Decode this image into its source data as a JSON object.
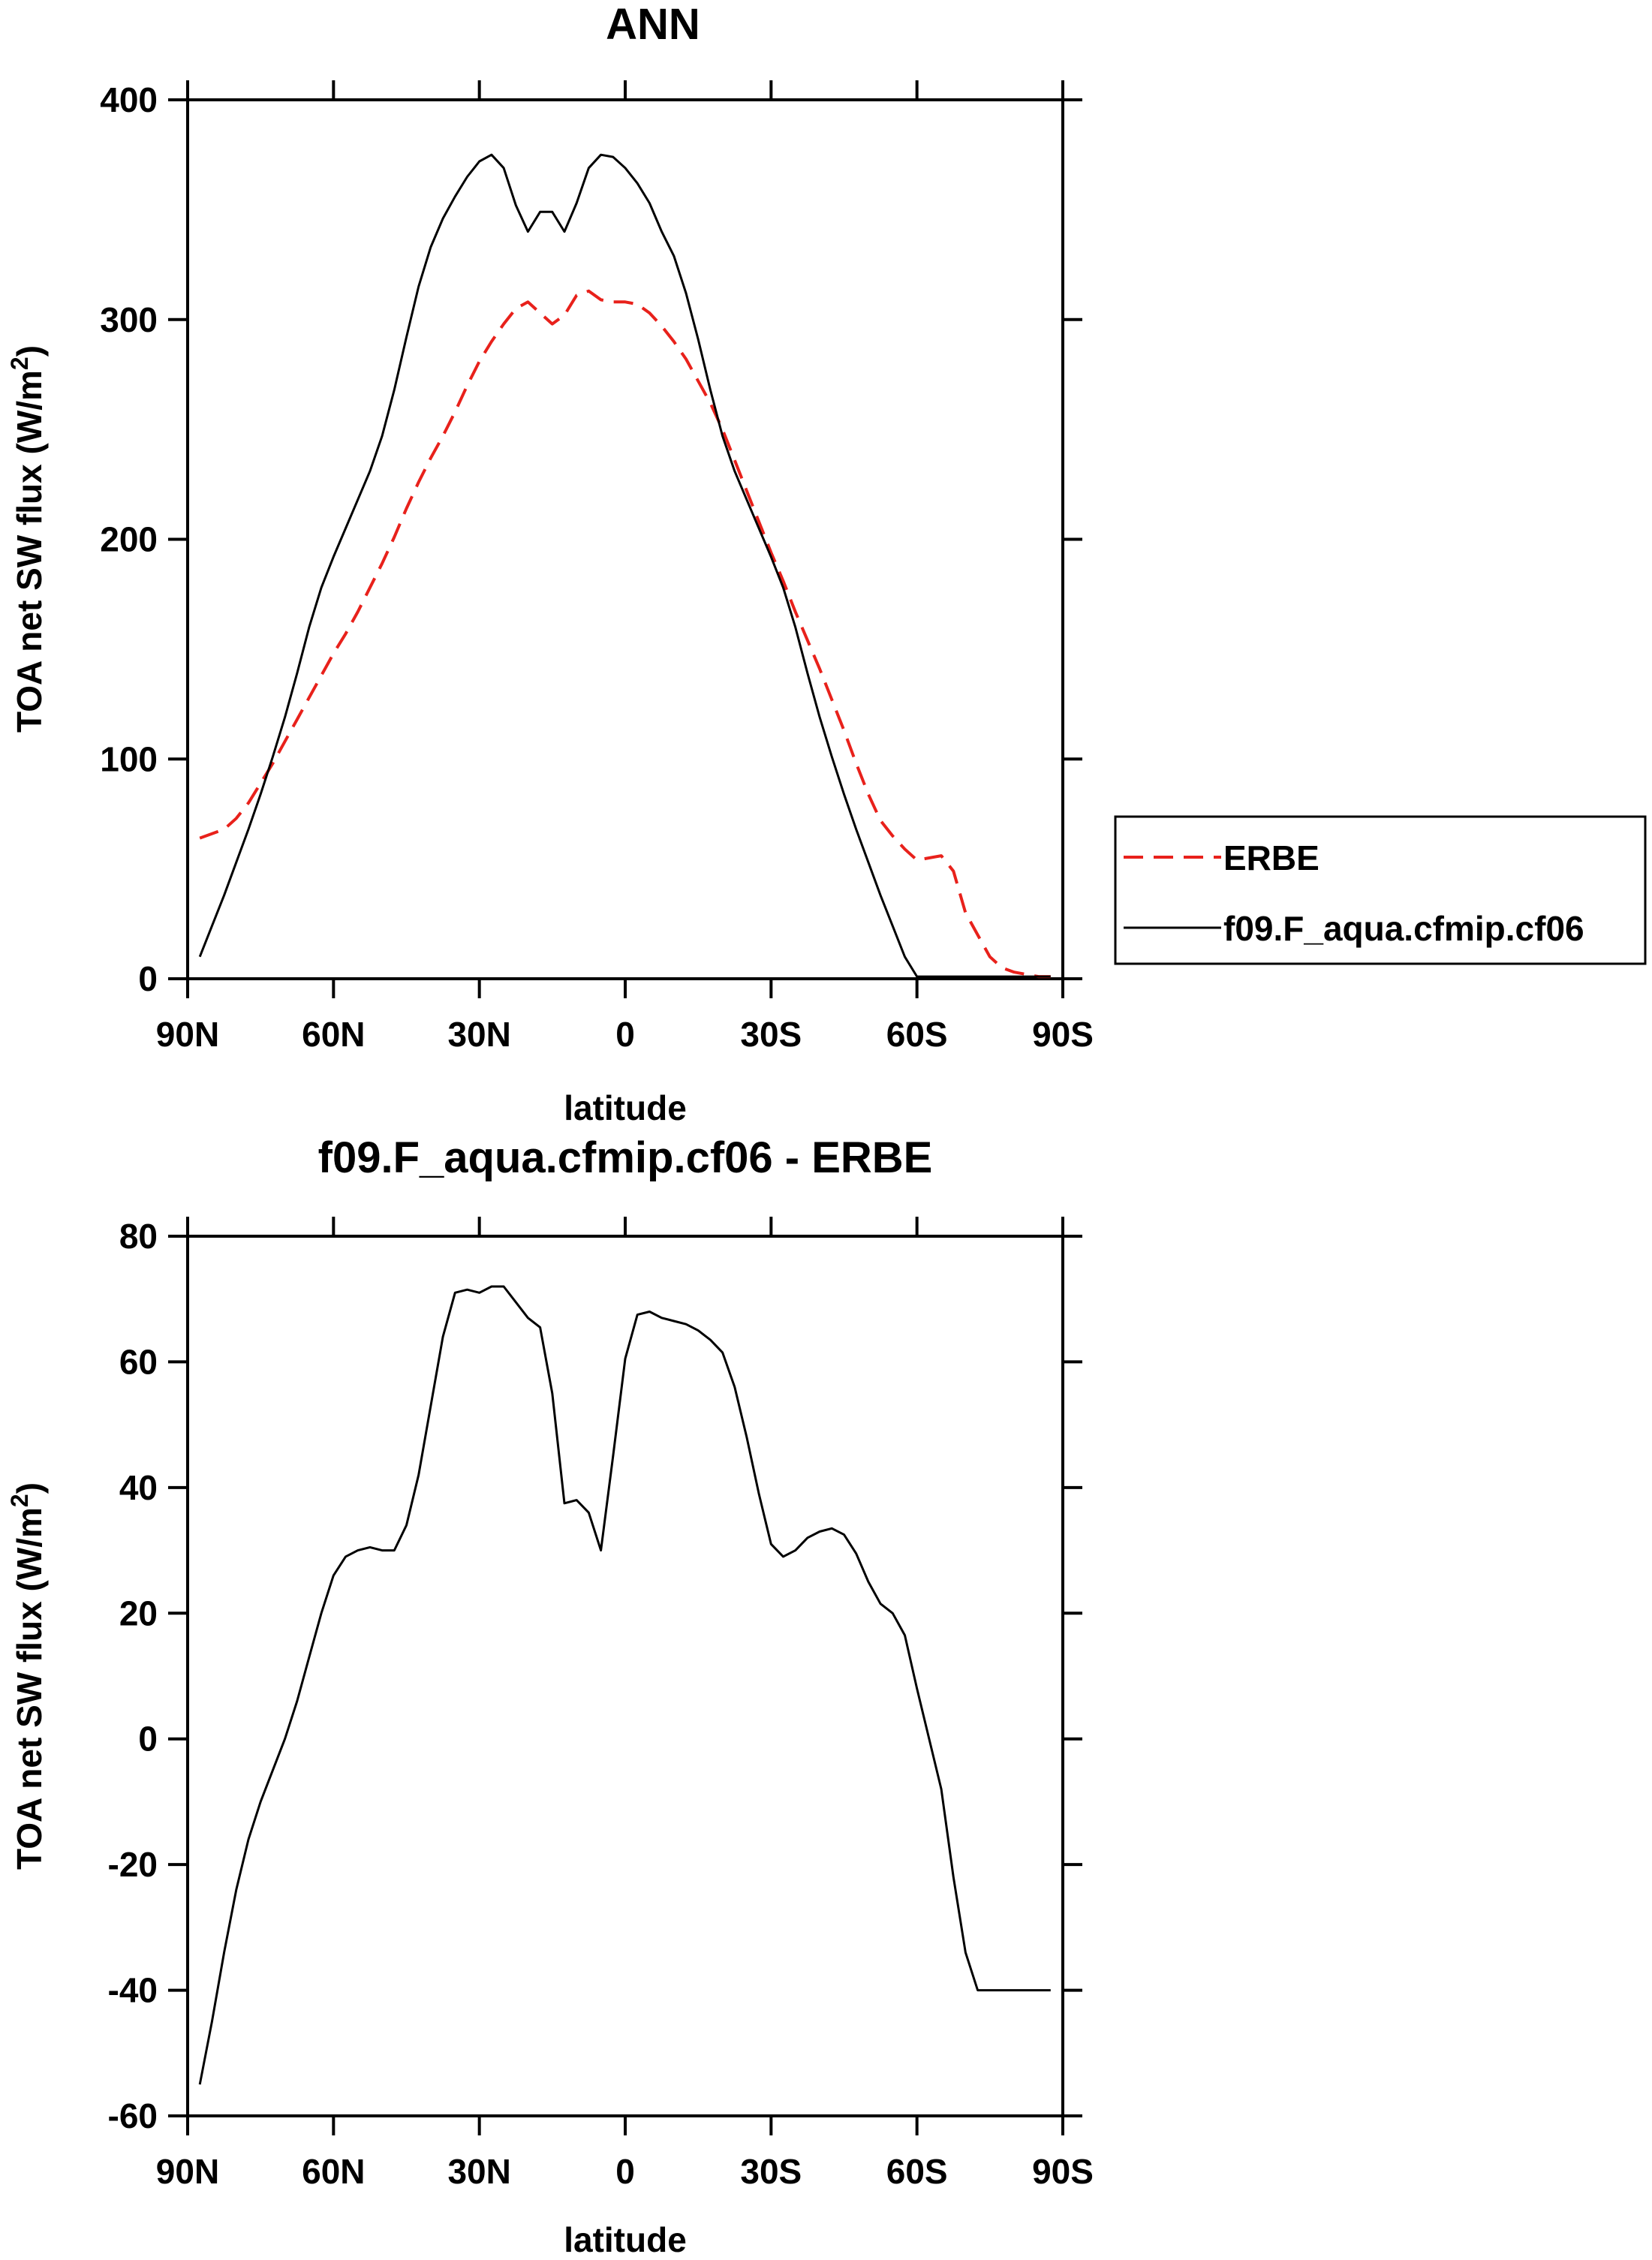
{
  "chart_data": [
    {
      "type": "line",
      "title": "ANN",
      "xlabel": "latitude",
      "ylabel": "TOA net SW flux (W/m",
      "ylabel_sup": "2",
      "ylabel_end": ")",
      "xlim": [
        -90,
        90
      ],
      "ylim": [
        0,
        400
      ],
      "xticks": [
        -90,
        -60,
        -30,
        0,
        30,
        60,
        90
      ],
      "xtick_labels": [
        "90N",
        "60N",
        "30N",
        "0",
        "30S",
        "60S",
        "90S"
      ],
      "yticks": [
        0,
        100,
        200,
        300,
        400
      ],
      "ytick_labels": [
        "0",
        "100",
        "200",
        "300",
        "400"
      ],
      "legend_position": "right",
      "series": [
        {
          "name": "ERBE",
          "color": "#e8211b",
          "dash": "dashed",
          "x": [
            -87.5,
            -85,
            -82.5,
            -80,
            -77.5,
            -75,
            -72.5,
            -70,
            -67.5,
            -65,
            -62.5,
            -60,
            -57.5,
            -55,
            -52.5,
            -50,
            -47.5,
            -45,
            -42.5,
            -40,
            -37.5,
            -35,
            -32.5,
            -30,
            -27.5,
            -25,
            -22.5,
            -20,
            -17.5,
            -15,
            -12.5,
            -10,
            -7.5,
            -5,
            -2.5,
            0,
            2.5,
            5,
            7.5,
            10,
            12.5,
            15,
            17.5,
            20,
            22.5,
            25,
            27.5,
            30,
            32.5,
            35,
            37.5,
            40,
            42.5,
            45,
            47.5,
            50,
            52.5,
            55,
            57.5,
            60,
            62.5,
            65,
            67.5,
            70,
            72.5,
            75,
            77.5,
            80,
            82.5,
            85,
            87.5
          ],
          "y": [
            64,
            66,
            68,
            73,
            80,
            89,
            98,
            108,
            118,
            128,
            138,
            148,
            157,
            167,
            178,
            189,
            201,
            214,
            226,
            237,
            247,
            258,
            270,
            281,
            290,
            298,
            305,
            308,
            303,
            298,
            302,
            311,
            313,
            309,
            308,
            308,
            307,
            303,
            297,
            290,
            282,
            272,
            262,
            250,
            236,
            222,
            208,
            194,
            181,
            167,
            154,
            141,
            127,
            113,
            98,
            84,
            72,
            65,
            59,
            54,
            55,
            56,
            49,
            30,
            20,
            10,
            5,
            3,
            2,
            1,
            1
          ]
        },
        {
          "name": "f09.F_aqua.cfmip.cf06",
          "color": "#000000",
          "dash": "solid",
          "x": [
            -87.5,
            -85,
            -82.5,
            -80,
            -77.5,
            -75,
            -72.5,
            -70,
            -67.5,
            -65,
            -62.5,
            -60,
            -57.5,
            -55,
            -52.5,
            -50,
            -47.5,
            -45,
            -42.5,
            -40,
            -37.5,
            -35,
            -32.5,
            -30,
            -27.5,
            -25,
            -22.5,
            -20,
            -17.5,
            -15,
            -12.5,
            -10,
            -7.5,
            -5,
            -2.5,
            0,
            2.5,
            5,
            7.5,
            10,
            12.5,
            15,
            17.5,
            20,
            22.5,
            25,
            27.5,
            30,
            32.5,
            35,
            37.5,
            40,
            42.5,
            45,
            47.5,
            50,
            52.5,
            55,
            57.5,
            60,
            62.5,
            65,
            67.5,
            70,
            72.5,
            75,
            77.5,
            80,
            82.5,
            85,
            87.5
          ],
          "y": [
            10,
            24,
            38,
            53,
            68,
            84,
            101,
            119,
            139,
            160,
            178,
            192,
            205,
            218,
            231,
            247,
            268,
            292,
            315,
            333,
            346,
            356,
            365,
            372,
            375,
            369,
            352,
            340,
            349,
            349,
            340,
            353,
            369,
            375,
            374,
            369,
            362,
            353,
            340,
            329,
            312,
            291,
            268,
            247,
            231,
            218,
            205,
            192,
            178,
            160,
            139,
            119,
            101,
            84,
            68,
            53,
            38,
            24,
            10,
            1,
            1,
            1,
            1,
            1,
            1,
            1,
            1,
            1,
            1,
            1,
            1
          ]
        }
      ]
    },
    {
      "type": "line",
      "title": "f09.F_aqua.cfmip.cf06 - ERBE",
      "xlabel": "latitude",
      "ylabel": "TOA net SW flux (W/m",
      "ylabel_sup": "2",
      "ylabel_end": ")",
      "xlim": [
        -90,
        90
      ],
      "ylim": [
        -60,
        80
      ],
      "xticks": [
        -90,
        -60,
        -30,
        0,
        30,
        60,
        90
      ],
      "xtick_labels": [
        "90N",
        "60N",
        "30N",
        "0",
        "30S",
        "60S",
        "90S"
      ],
      "yticks": [
        -60,
        -40,
        -20,
        0,
        20,
        40,
        60,
        80
      ],
      "ytick_labels": [
        "-60",
        "-40",
        "-20",
        "0",
        "20",
        "40",
        "60",
        "80"
      ],
      "series": [
        {
          "name": "f09.F_aqua.cfmip.cf06 - ERBE",
          "color": "#000000",
          "dash": "solid",
          "x": [
            -87.5,
            -85,
            -82.5,
            -80,
            -77.5,
            -75,
            -72.5,
            -70,
            -67.5,
            -65,
            -62.5,
            -60,
            -57.5,
            -55,
            -52.5,
            -50,
            -47.5,
            -45,
            -42.5,
            -40,
            -37.5,
            -35,
            -32.5,
            -30,
            -27.5,
            -25,
            -22.5,
            -20,
            -17.5,
            -15,
            -12.5,
            -10,
            -7.5,
            -5,
            -2.5,
            0,
            2.5,
            5,
            7.5,
            10,
            12.5,
            15,
            17.5,
            20,
            22.5,
            25,
            27.5,
            30,
            32.5,
            35,
            37.5,
            40,
            42.5,
            45,
            47.5,
            50,
            52.5,
            55,
            57.5,
            60,
            62.5,
            65,
            67.5,
            70,
            72.5,
            75,
            77.5,
            80,
            82.5,
            85,
            87.5
          ],
          "y": [
            -55,
            -45,
            -34,
            -24,
            -16,
            -10,
            -5,
            0,
            6,
            13,
            20,
            26,
            29,
            30,
            30.5,
            30,
            30,
            34,
            42,
            53,
            64,
            71,
            71.5,
            71,
            72,
            72,
            69.5,
            67,
            65.5,
            55,
            37.5,
            38,
            36,
            30,
            45,
            60.5,
            67.5,
            68,
            67,
            66.5,
            66,
            65,
            63.5,
            61.5,
            56,
            48,
            39,
            31,
            29,
            30,
            32,
            33,
            33.5,
            32.5,
            29.5,
            25,
            21.5,
            20,
            16.5,
            8,
            0,
            -8,
            -22,
            -34,
            -40,
            -40,
            -40,
            -40,
            -40,
            -40,
            -40
          ]
        }
      ]
    }
  ]
}
